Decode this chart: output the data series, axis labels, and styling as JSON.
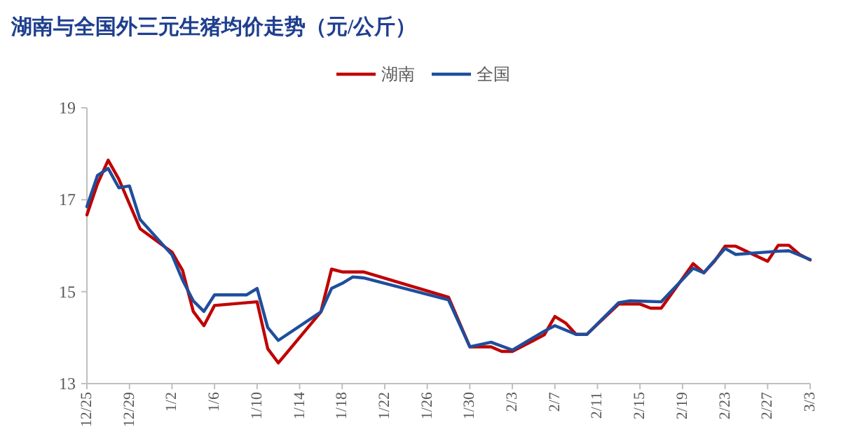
{
  "chart_data": {
    "type": "line",
    "title": "湖南与全国外三元生猪均价走势（元/公斤）",
    "ylim": [
      13,
      19
    ],
    "yticks": [
      13,
      15,
      17,
      19
    ],
    "categories": [
      "12/25",
      null,
      null,
      null,
      "12/29",
      null,
      null,
      null,
      "1/2",
      null,
      null,
      null,
      "1/6",
      null,
      null,
      null,
      "1/10",
      null,
      null,
      null,
      "1/14",
      null,
      null,
      null,
      "1/18",
      null,
      null,
      null,
      "1/22",
      null,
      null,
      null,
      "1/26",
      null,
      null,
      null,
      "1/30",
      null,
      null,
      null,
      "2/3",
      null,
      null,
      null,
      "2/7",
      null,
      null,
      null,
      "2/11",
      null,
      null,
      null,
      "2/15",
      null,
      null,
      null,
      "2/19",
      null,
      null,
      null,
      "2/23",
      null,
      null,
      null,
      "2/27",
      null,
      null,
      null,
      "3/3"
    ],
    "legend": "top",
    "grid": false,
    "marker": "none",
    "line_style": "solid",
    "series": [
      {
        "name": "湖南",
        "color": "#c00000",
        "values": [
          16.67,
          17.35,
          17.86,
          17.45,
          null,
          16.37,
          null,
          null,
          15.86,
          15.46,
          14.57,
          14.26,
          14.7,
          null,
          null,
          null,
          14.78,
          13.76,
          13.45,
          null,
          null,
          null,
          14.56,
          15.49,
          15.43,
          null,
          15.43,
          null,
          null,
          null,
          null,
          null,
          null,
          null,
          14.88,
          null,
          13.8,
          null,
          13.8,
          13.7,
          13.7,
          null,
          null,
          14.06,
          14.46,
          14.32,
          14.07,
          14.07,
          null,
          null,
          14.73,
          null,
          14.73,
          14.64,
          14.64,
          null,
          null,
          15.61,
          15.41,
          15.66,
          15.99,
          15.99,
          null,
          null,
          15.66,
          16.01,
          16.01,
          15.81,
          15.69
        ]
      },
      {
        "name": "全国",
        "color": "#1f4e9c",
        "values": [
          16.85,
          17.53,
          17.68,
          17.26,
          17.3,
          16.57,
          null,
          null,
          15.8,
          15.25,
          14.8,
          14.57,
          14.93,
          null,
          null,
          14.93,
          15.07,
          14.22,
          13.94,
          null,
          null,
          null,
          14.56,
          15.07,
          15.18,
          15.32,
          15.3,
          null,
          null,
          null,
          null,
          null,
          null,
          null,
          14.82,
          null,
          13.8,
          null,
          13.9,
          null,
          13.73,
          null,
          null,
          14.14,
          14.26,
          null,
          14.07,
          14.07,
          null,
          null,
          14.76,
          14.8,
          null,
          null,
          14.78,
          null,
          null,
          15.51,
          15.41,
          null,
          15.94,
          15.81,
          null,
          null,
          null,
          15.88,
          15.89,
          null,
          15.7
        ]
      }
    ]
  }
}
